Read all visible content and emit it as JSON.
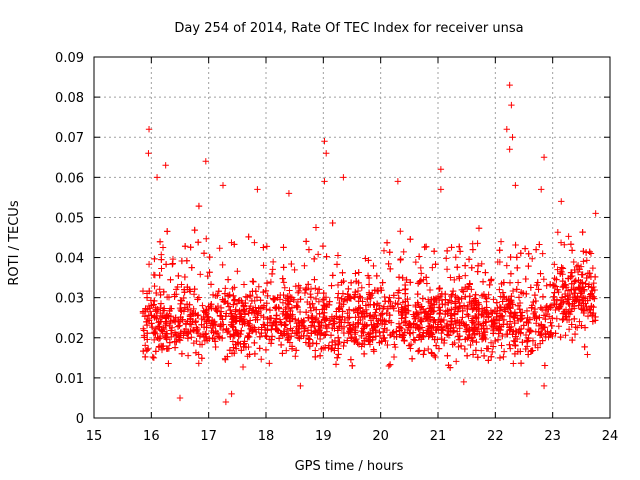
{
  "chart_data": {
    "type": "scatter",
    "title": "Day 254 of 2014, Rate Of TEC Index for receiver unsa",
    "xlabel": "GPS time / hours",
    "ylabel": "ROTI / TECUs",
    "xlim": [
      15,
      24
    ],
    "ylim": [
      0,
      0.09
    ],
    "x_ticks": [
      "15",
      "16",
      "17",
      "18",
      "19",
      "20",
      "21",
      "22",
      "23",
      "24"
    ],
    "y_ticks": [
      "0",
      "0.01",
      "0.02",
      "0.03",
      "0.04",
      "0.05",
      "0.06",
      "0.07",
      "0.08",
      "0.09"
    ],
    "grid": true,
    "marker": "+",
    "series": [
      {
        "name": "ROTI",
        "color": "#ff0000",
        "x_range": [
          15.85,
          23.75
        ],
        "typical_range": [
          0.008,
          0.045
        ],
        "notable_points": [
          [
            15.96,
            0.072
          ],
          [
            15.95,
            0.066
          ],
          [
            16.25,
            0.063
          ],
          [
            16.1,
            0.06
          ],
          [
            16.95,
            0.064
          ],
          [
            17.25,
            0.058
          ],
          [
            17.85,
            0.057
          ],
          [
            18.4,
            0.056
          ],
          [
            19.02,
            0.069
          ],
          [
            19.05,
            0.066
          ],
          [
            19.02,
            0.059
          ],
          [
            19.35,
            0.06
          ],
          [
            20.3,
            0.059
          ],
          [
            21.05,
            0.062
          ],
          [
            21.05,
            0.057
          ],
          [
            22.25,
            0.083
          ],
          [
            22.28,
            0.078
          ],
          [
            22.2,
            0.072
          ],
          [
            22.3,
            0.07
          ],
          [
            22.25,
            0.067
          ],
          [
            22.35,
            0.058
          ],
          [
            22.85,
            0.065
          ],
          [
            22.8,
            0.057
          ],
          [
            23.15,
            0.054
          ],
          [
            23.75,
            0.051
          ],
          [
            16.5,
            0.005
          ],
          [
            17.3,
            0.004
          ],
          [
            17.4,
            0.006
          ],
          [
            22.55,
            0.006
          ],
          [
            22.85,
            0.008
          ],
          [
            21.45,
            0.009
          ],
          [
            18.6,
            0.008
          ]
        ]
      }
    ]
  }
}
